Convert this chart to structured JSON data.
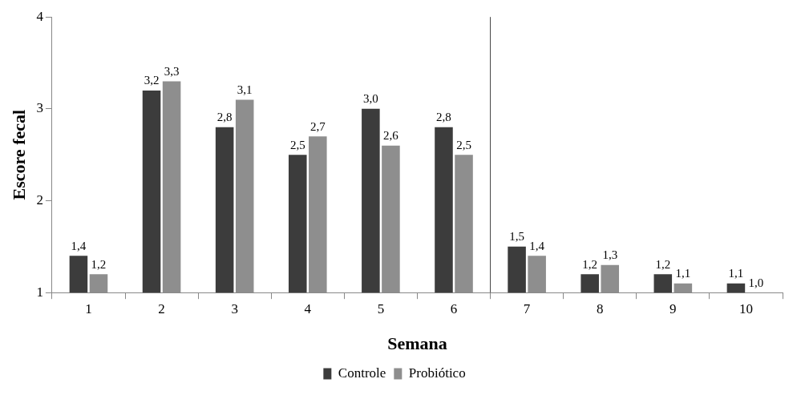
{
  "chart_data": {
    "type": "bar",
    "xlabel": "Semana",
    "ylabel": "Escore fecal",
    "categories": [
      "1",
      "2",
      "3",
      "4",
      "5",
      "6",
      "7",
      "8",
      "9",
      "10"
    ],
    "series": [
      {
        "name": "Controle",
        "color": "#3c3c3c",
        "values": [
          1.4,
          3.2,
          2.8,
          2.5,
          3.0,
          2.8,
          1.5,
          1.2,
          1.2,
          1.1
        ],
        "value_labels": [
          "1,4",
          "3,2",
          "2,8",
          "2,5",
          "3,0",
          "2,8",
          "1,5",
          "1,2",
          "1,2",
          "1,1"
        ]
      },
      {
        "name": "Probiótico",
        "color": "#8e8e8e",
        "values": [
          1.2,
          3.3,
          3.1,
          2.7,
          2.6,
          2.5,
          1.4,
          1.3,
          1.1,
          1.0
        ],
        "value_labels": [
          "1,2",
          "3,3",
          "3,1",
          "2,7",
          "2,6",
          "2,5",
          "1,4",
          "1,3",
          "1,1",
          "1,0"
        ]
      }
    ],
    "ylim": [
      1,
      4
    ],
    "yticks": [
      1,
      2,
      3,
      4
    ],
    "grid": false,
    "legend": "bottom"
  }
}
